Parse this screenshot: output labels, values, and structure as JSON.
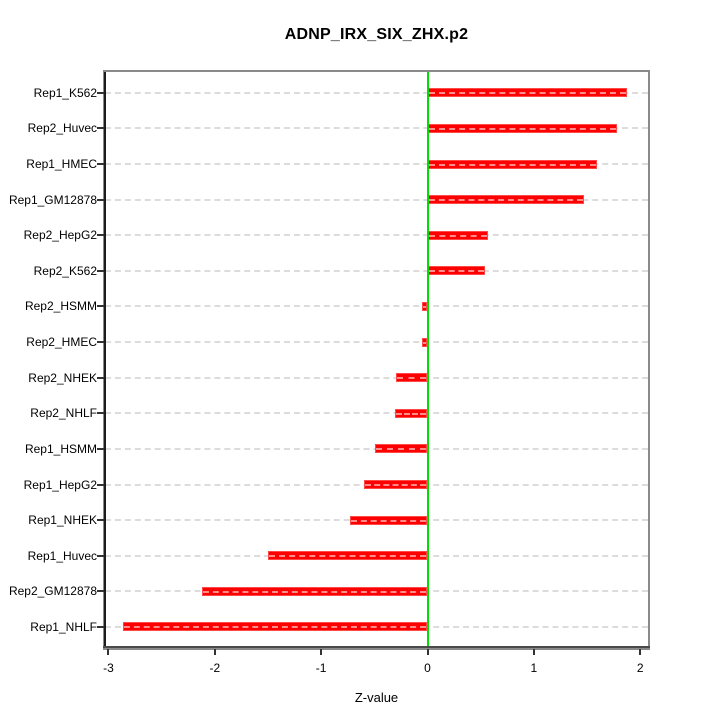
{
  "title": "ADNP_IRX_SIX_ZHX.p2",
  "chart_data": {
    "type": "bar",
    "orientation": "horizontal",
    "title": "ADNP_IRX_SIX_ZHX.p2",
    "xlabel": "Z-value",
    "ylabel": "",
    "xlim": [
      -3.2,
      2.1
    ],
    "x_ticks": [
      -3,
      -2,
      -1,
      0,
      1,
      2
    ],
    "grid": true,
    "legend": "none",
    "categories_top_to_bottom": [
      "Rep1_K562",
      "Rep2_Huvec",
      "Rep1_HMEC",
      "Rep1_GM12878",
      "Rep2_HepG2",
      "Rep2_K562",
      "Rep2_HSMM",
      "Rep2_HMEC",
      "Rep2_NHEK",
      "Rep2_NHLF",
      "Rep1_HSMM",
      "Rep1_HepG2",
      "Rep1_NHEK",
      "Rep1_Huvec",
      "Rep2_GM12878",
      "Rep1_NHLF"
    ],
    "values": [
      1.88,
      1.78,
      1.59,
      1.47,
      0.57,
      0.54,
      -0.05,
      -0.05,
      -0.3,
      -0.31,
      -0.49,
      -0.6,
      -0.73,
      -1.5,
      -2.12,
      -2.86
    ],
    "colors": {
      "bar": "#ff0000",
      "zero_line": "#00dd00",
      "grid": "#dcdcdc",
      "box": "#8a8a8a",
      "axis": "#1c1c1c",
      "text": "#000000"
    }
  }
}
